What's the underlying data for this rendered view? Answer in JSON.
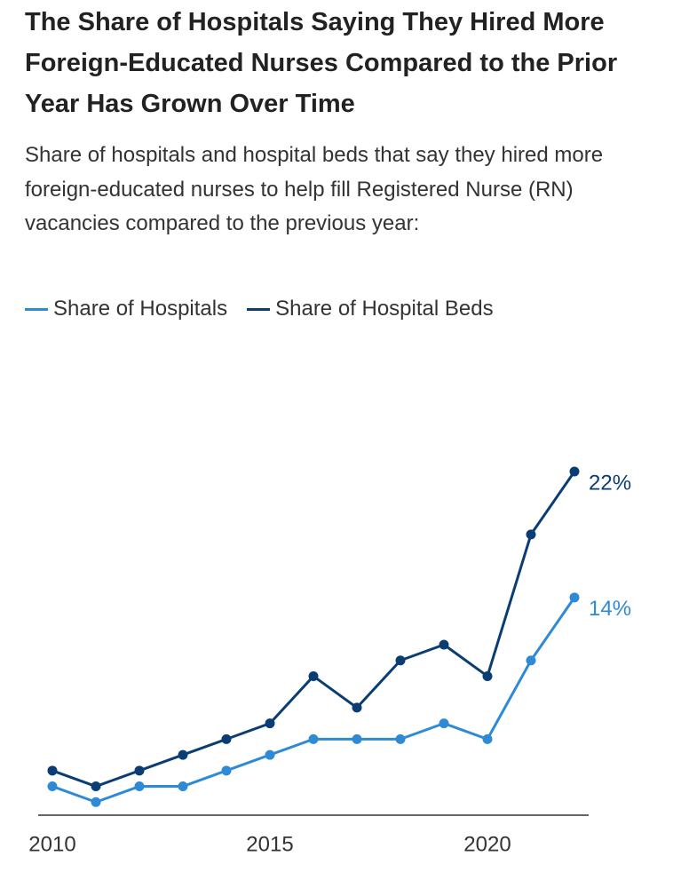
{
  "chart_data": {
    "type": "line",
    "title": "The Share of Hospitals Saying They Hired More Foreign-Educated Nurses Compared to the Prior Year Has Grown Over Time",
    "subtitle": "Share of hospitals and hospital beds that say they hired more foreign-educated nurses to help fill Registered Nurse (RN) vacancies compared to the previous year:",
    "x": [
      2010,
      2011,
      2012,
      2013,
      2014,
      2015,
      2016,
      2017,
      2018,
      2019,
      2020,
      2021,
      2022
    ],
    "series": [
      {
        "name": "Share of Hospitals",
        "color": "#2f8ad6",
        "values": [
          2,
          1,
          2,
          2,
          3,
          4,
          5,
          5,
          5,
          6,
          5,
          10,
          14
        ],
        "value_labels": [
          null,
          null,
          null,
          null,
          null,
          null,
          null,
          null,
          null,
          null,
          null,
          null,
          "14%"
        ]
      },
      {
        "name": "Share of Hospital Beds",
        "color": "#0b3d75",
        "values": [
          3,
          2,
          3,
          4,
          5,
          6,
          9,
          7,
          10,
          11,
          9,
          18,
          22
        ],
        "value_labels": [
          null,
          null,
          null,
          null,
          null,
          null,
          null,
          null,
          null,
          null,
          null,
          null,
          "22%"
        ]
      }
    ],
    "xlim": [
      2010,
      2022
    ],
    "xticks": [
      2010,
      2015,
      2020
    ],
    "ylim": [
      0,
      22
    ],
    "grid": false
  }
}
